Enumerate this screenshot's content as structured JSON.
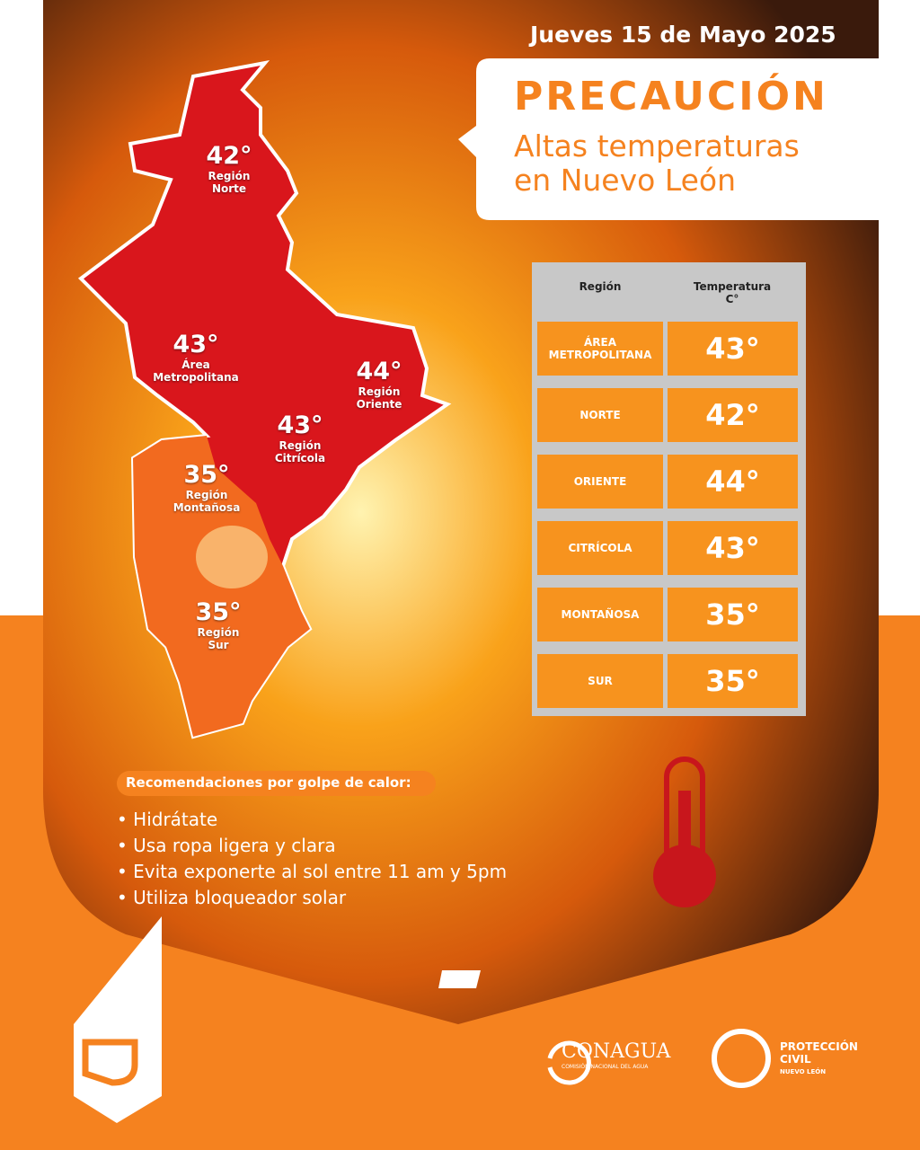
{
  "header": {
    "date": "Jueves 15 de Mayo 2025",
    "title": "PRECAUCIÓN",
    "subtitle": [
      "Altas temperaturas",
      "en Nuevo León"
    ]
  },
  "map": {
    "labels": [
      {
        "temp": "42°",
        "name": [
          "Región",
          "Norte"
        ]
      },
      {
        "temp": "43°",
        "name": [
          "Área",
          "Metropolitana"
        ]
      },
      {
        "temp": "44°",
        "name": [
          "Región",
          "Oriente"
        ]
      },
      {
        "temp": "43°",
        "name": [
          "Región",
          "Citrícola"
        ]
      },
      {
        "temp": "35°",
        "name": [
          "Región",
          "Montañosa"
        ]
      },
      {
        "temp": "35°",
        "name": [
          "Región",
          "Sur"
        ]
      }
    ]
  },
  "table": {
    "header": [
      [
        "Región"
      ],
      [
        "Temperatura",
        "C°"
      ]
    ],
    "rows": [
      [
        [
          "ÁREA",
          "METROPOLITANA"
        ],
        "43°"
      ],
      [
        [
          "NORTE"
        ],
        "42°"
      ],
      [
        [
          "ORIENTE"
        ],
        "44°"
      ],
      [
        [
          "CITRÍCOLA"
        ],
        "43°"
      ],
      [
        [
          "MONTAÑOSA"
        ],
        "35°"
      ],
      [
        [
          "SUR"
        ],
        "35°"
      ]
    ]
  },
  "recommendations": {
    "title": "Recomendaciones por golpe de calor:",
    "items": [
      "Hidrátate",
      "Usa ropa ligera y clara",
      "Evita exponerte al sol entre 11 am y 5pm",
      "Utiliza bloqueador solar"
    ]
  },
  "footer": {
    "conagua": "CONAGUA",
    "conagua_sub": "COMISIÓN NACIONAL DEL AGUA",
    "pc": [
      "PROTECCIÓN",
      "CIVIL"
    ],
    "pc_sub": "NUEVO LEÓN"
  }
}
